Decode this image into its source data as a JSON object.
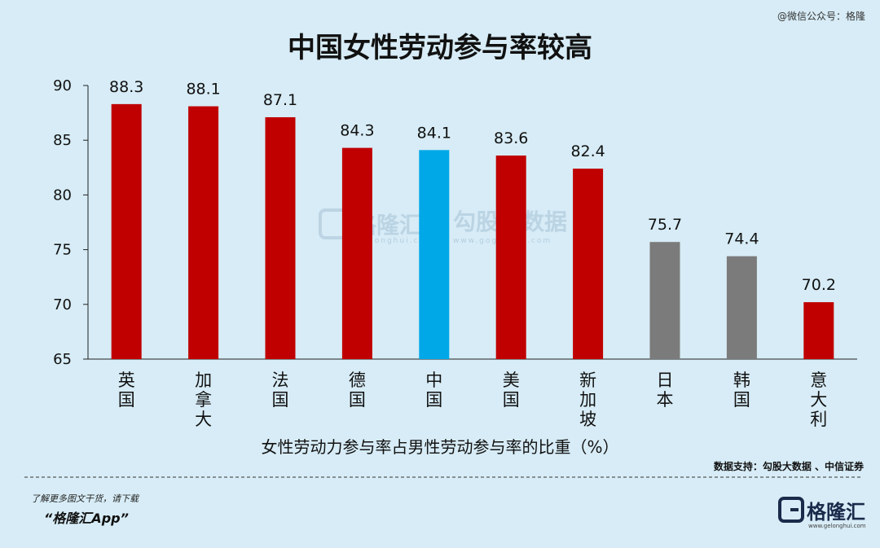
{
  "watermark_text": "@微信公众号：格隆",
  "center_watermark": {
    "brand": "格隆汇",
    "brand_url": "gelonghui.com",
    "partner": "勾股大数据",
    "partner_url": "www.gogudata.com"
  },
  "source_text": "数据支持：勾股大数据  、中信证券",
  "footer": {
    "note": "了解更多图文干货，请下载",
    "app": "“格隆汇App”",
    "brand": "格隆汇",
    "brand_url": "www.gelonghui.com"
  },
  "colors": {
    "highlight": "#00a8e8",
    "developed": "#c00000",
    "asia_developed": "#7b7b7b",
    "background": "#d7ecf6"
  },
  "chart_data": {
    "type": "bar",
    "title": "中国女性劳动参与率较高",
    "xlabel": "女性劳动力参与率占男性劳动参与率的比重（%）",
    "ylabel": "",
    "ylim": [
      65,
      90
    ],
    "yticks": [
      65,
      70,
      75,
      80,
      85,
      90
    ],
    "categories": [
      "英国",
      "加拿大",
      "法国",
      "德国",
      "中国",
      "美国",
      "新加坡",
      "日本",
      "韩国",
      "意大利"
    ],
    "values": [
      88.3,
      88.1,
      87.1,
      84.3,
      84.1,
      83.6,
      82.4,
      75.7,
      74.4,
      70.2
    ],
    "data_labels": [
      "88.3",
      "88.1",
      "87.1",
      "84.3",
      "84.1",
      "83.6",
      "82.4",
      "75.7",
      "74.4",
      "70.2"
    ],
    "bar_colors": [
      "#c00000",
      "#c00000",
      "#c00000",
      "#c00000",
      "#00a8e8",
      "#c00000",
      "#c00000",
      "#7b7b7b",
      "#7b7b7b",
      "#c00000"
    ],
    "grid": false,
    "legend": "none"
  }
}
